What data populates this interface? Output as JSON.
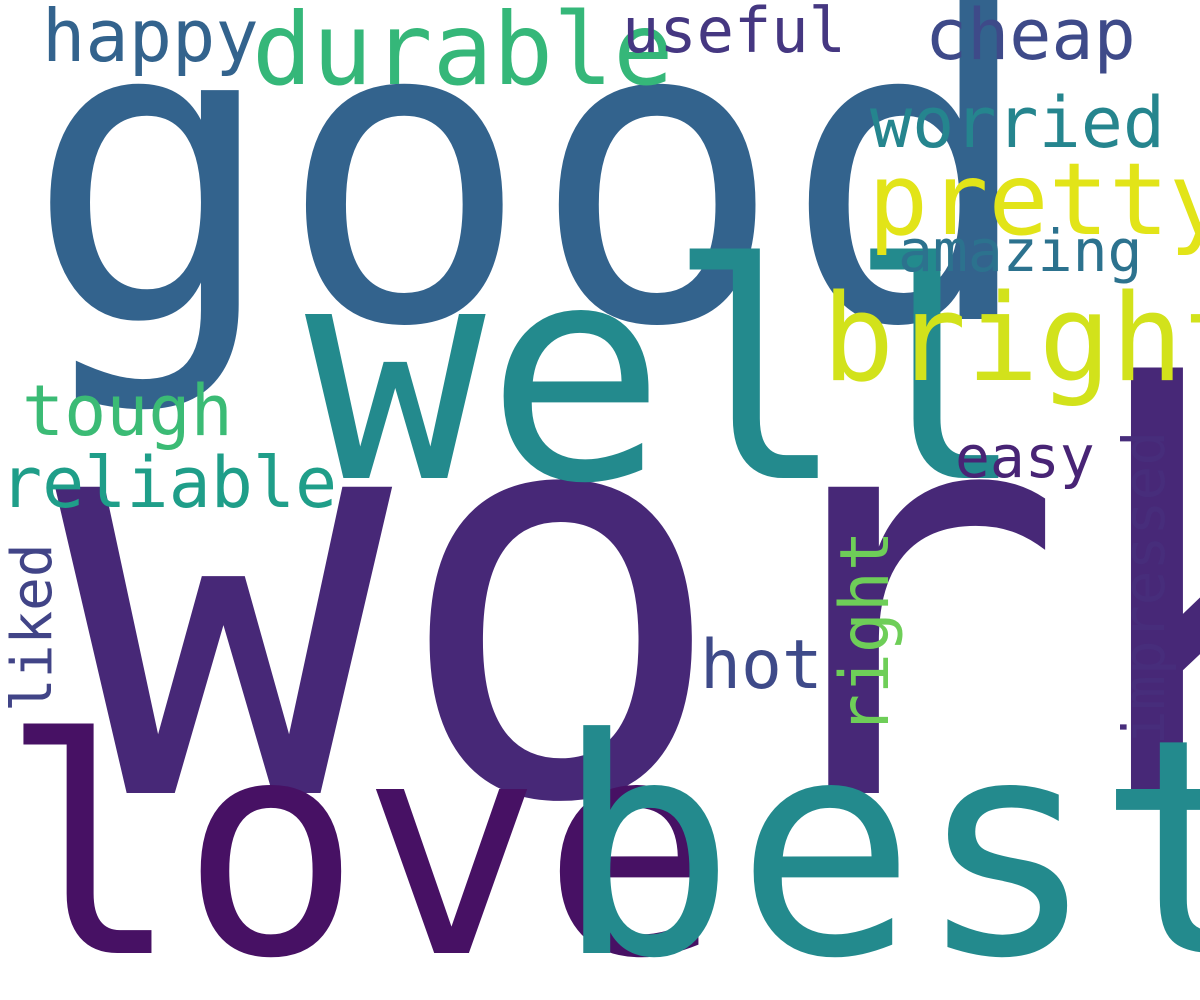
{
  "word_cloud": {
    "background": "#ffffff",
    "words": {
      "work": {
        "text": "work",
        "color": "#472877"
      },
      "good": {
        "text": "good",
        "color": "#33638d"
      },
      "well": {
        "text": "well",
        "color": "#238a8d"
      },
      "love": {
        "text": "love",
        "color": "#471164"
      },
      "best": {
        "text": "best",
        "color": "#238a8d"
      },
      "durable": {
        "text": "durable",
        "color": "#35b779"
      },
      "bright": {
        "text": "bright",
        "color": "#d2e21b"
      },
      "pretty": {
        "text": "pretty",
        "color": "#e2e418"
      },
      "happy": {
        "text": "happy",
        "color": "#33638d"
      },
      "useful": {
        "text": "useful",
        "color": "#453781"
      },
      "cheap": {
        "text": "cheap",
        "color": "#3e4a89"
      },
      "worried": {
        "text": "worried",
        "color": "#25858e"
      },
      "amazing": {
        "text": "amazing",
        "color": "#2c728e"
      },
      "tough": {
        "text": "tough",
        "color": "#3bbb75"
      },
      "reliable": {
        "text": "reliable",
        "color": "#1f9e89"
      },
      "easy": {
        "text": "easy",
        "color": "#482475"
      },
      "hot": {
        "text": "hot",
        "color": "#3e4a89"
      },
      "impressed": {
        "text": "impressed",
        "color": "#472d7b"
      },
      "liked": {
        "text": "liked",
        "color": "#414487"
      },
      "right": {
        "text": "right",
        "color": "#6ece58"
      }
    }
  }
}
